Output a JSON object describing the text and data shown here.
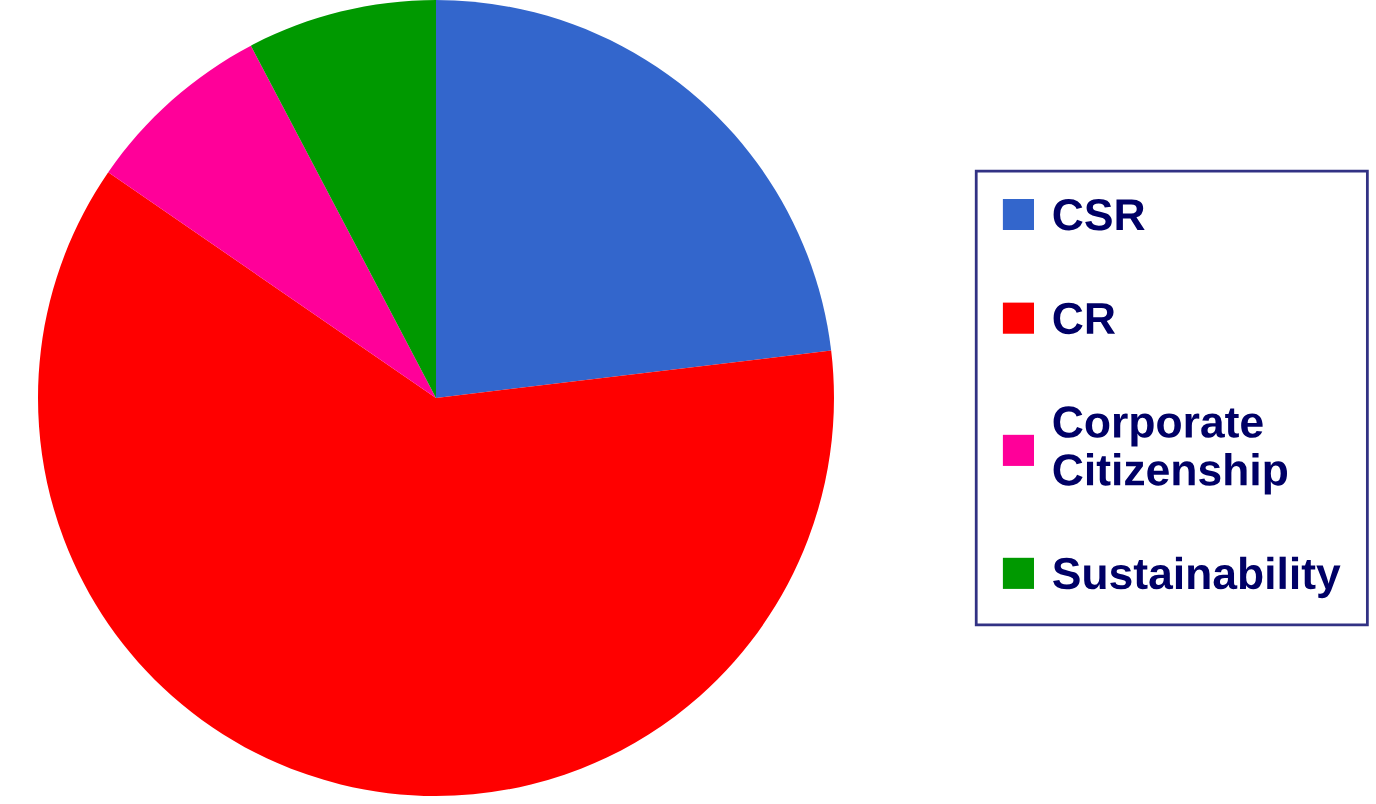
{
  "chart_data": {
    "type": "pie",
    "categories": [
      "CSR",
      "CR",
      "Corporate Citizenship",
      "Sustainability"
    ],
    "values": [
      23.1,
      61.5,
      7.7,
      7.7
    ],
    "colors": [
      "#3366cc",
      "#ff0000",
      "#ff0099",
      "#009900"
    ],
    "legend": "right"
  }
}
